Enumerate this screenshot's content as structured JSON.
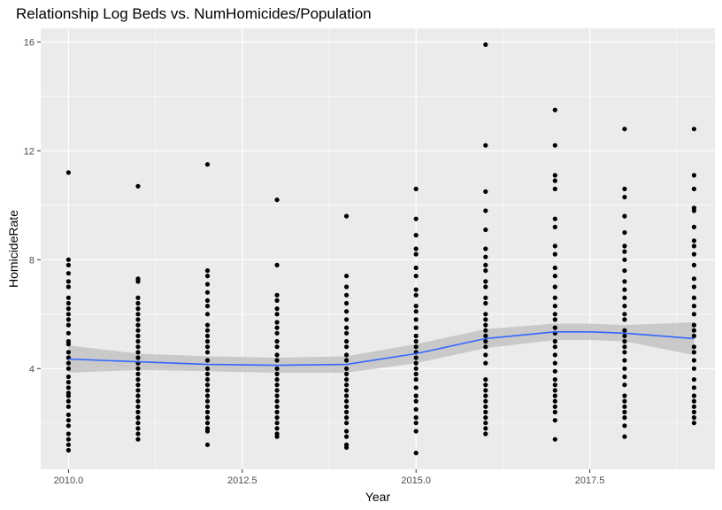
{
  "chart_data": {
    "type": "scatter",
    "title": "Relationship Log Beds vs. NumHomicides/Population",
    "xlabel": "Year",
    "ylabel": "HomicideRate",
    "xlim": [
      2009.6,
      2019.3
    ],
    "ylim": [
      0.3,
      16.5
    ],
    "x_ticks": [
      2010.0,
      2012.5,
      2015.0,
      2017.5
    ],
    "x_tick_labels": [
      "2010.0",
      "2012.5",
      "2015.0",
      "2017.5"
    ],
    "y_ticks": [
      4,
      8,
      12,
      16
    ],
    "y_tick_labels": [
      "4",
      "8",
      "12",
      "16"
    ],
    "grid": true,
    "colors": {
      "panel": "#ebebeb",
      "grid": "#ffffff",
      "points": "#000000",
      "smooth_line": "#3366ff",
      "ribbon": "#bdbdbd"
    },
    "series": [
      {
        "x": 2010,
        "values": [
          11.2,
          8.0,
          7.8,
          7.5,
          7.2,
          7.0,
          6.6,
          6.4,
          6.2,
          6.0,
          5.8,
          5.6,
          5.3,
          5.0,
          4.9,
          4.6,
          4.4,
          4.2,
          4.0,
          3.7,
          3.5,
          3.3,
          3.1,
          3.0,
          2.8,
          2.6,
          2.3,
          2.1,
          1.9,
          1.6,
          1.4,
          1.2,
          1.0
        ]
      },
      {
        "x": 2011,
        "values": [
          10.7,
          7.3,
          7.2,
          6.6,
          6.4,
          6.2,
          6.0,
          5.8,
          5.6,
          5.4,
          5.2,
          5.0,
          4.8,
          4.6,
          4.4,
          4.2,
          4.0,
          3.8,
          3.6,
          3.4,
          3.2,
          3.0,
          2.8,
          2.6,
          2.4,
          2.2,
          2.0,
          1.8,
          1.6,
          1.4
        ]
      },
      {
        "x": 2012,
        "values": [
          11.5,
          7.6,
          7.4,
          7.1,
          6.8,
          6.5,
          6.3,
          6.0,
          5.6,
          5.4,
          5.2,
          5.0,
          4.8,
          4.6,
          4.3,
          4.0,
          3.8,
          3.6,
          3.4,
          3.2,
          3.0,
          2.8,
          2.6,
          2.4,
          2.2,
          2.0,
          1.8,
          1.7,
          1.2
        ]
      },
      {
        "x": 2013,
        "values": [
          10.2,
          7.8,
          6.7,
          6.5,
          6.2,
          6.0,
          5.7,
          5.5,
          5.3,
          5.0,
          4.8,
          4.5,
          4.3,
          4.0,
          3.8,
          3.6,
          3.4,
          3.2,
          3.0,
          2.8,
          2.6,
          2.4,
          2.2,
          2.0,
          1.8,
          1.6,
          1.5
        ]
      },
      {
        "x": 2014,
        "values": [
          9.6,
          7.4,
          7.0,
          6.7,
          6.4,
          6.1,
          5.8,
          5.5,
          5.3,
          5.0,
          4.8,
          4.5,
          4.3,
          4.0,
          3.8,
          3.6,
          3.4,
          3.2,
          3.0,
          2.8,
          2.6,
          2.4,
          2.2,
          2.0,
          1.7,
          1.5,
          1.2,
          1.1
        ]
      },
      {
        "x": 2015,
        "values": [
          10.6,
          9.5,
          8.9,
          8.4,
          8.2,
          7.7,
          7.4,
          6.9,
          6.7,
          6.3,
          6.1,
          5.8,
          5.5,
          5.2,
          5.0,
          4.8,
          4.6,
          4.4,
          4.2,
          4.0,
          3.8,
          3.6,
          3.3,
          3.0,
          2.8,
          2.5,
          2.2,
          2.0,
          1.7,
          0.9
        ]
      },
      {
        "x": 2016,
        "values": [
          15.9,
          12.2,
          10.5,
          9.8,
          9.1,
          8.4,
          8.1,
          7.8,
          7.6,
          7.2,
          7.0,
          6.6,
          6.4,
          6.0,
          5.8,
          5.6,
          5.4,
          5.2,
          5.0,
          4.8,
          4.5,
          4.2,
          3.6,
          3.4,
          3.2,
          3.0,
          2.8,
          2.6,
          2.4,
          2.2,
          2.0,
          1.8,
          1.6
        ]
      },
      {
        "x": 2017,
        "values": [
          13.5,
          12.2,
          11.1,
          10.9,
          10.6,
          9.5,
          9.2,
          8.5,
          8.2,
          7.7,
          7.4,
          7.0,
          6.6,
          6.3,
          6.0,
          5.8,
          5.5,
          5.3,
          5.0,
          4.8,
          4.5,
          4.2,
          3.9,
          3.6,
          3.4,
          3.2,
          3.0,
          2.8,
          2.6,
          2.4,
          2.1,
          1.4
        ]
      },
      {
        "x": 2018,
        "values": [
          12.8,
          10.6,
          10.3,
          9.6,
          9.0,
          8.5,
          8.3,
          8.0,
          7.6,
          7.2,
          6.9,
          6.6,
          6.3,
          6.0,
          5.8,
          5.4,
          5.2,
          5.0,
          4.8,
          4.6,
          4.3,
          4.0,
          3.7,
          3.4,
          3.0,
          2.8,
          2.6,
          2.4,
          2.2,
          1.9,
          1.5
        ]
      },
      {
        "x": 2019,
        "values": [
          12.8,
          11.1,
          10.6,
          9.9,
          9.8,
          9.2,
          8.7,
          8.5,
          8.2,
          7.8,
          7.3,
          7.0,
          6.6,
          6.3,
          6.0,
          5.6,
          5.4,
          5.2,
          4.8,
          4.6,
          4.3,
          4.0,
          3.6,
          3.3,
          3.0,
          2.8,
          2.6,
          2.4,
          2.2,
          2.0
        ]
      }
    ],
    "smooth": {
      "x": [
        2010,
        2011,
        2012,
        2013,
        2014,
        2015,
        2016,
        2017,
        2017.5,
        2018,
        2019
      ],
      "y": [
        4.35,
        4.25,
        4.15,
        4.12,
        4.15,
        4.55,
        5.1,
        5.35,
        5.35,
        5.3,
        5.1
      ],
      "lower": [
        3.85,
        3.95,
        3.9,
        3.85,
        3.85,
        4.2,
        4.75,
        5.05,
        5.05,
        5.0,
        4.5
      ],
      "upper": [
        4.85,
        4.55,
        4.45,
        4.4,
        4.45,
        4.9,
        5.45,
        5.65,
        5.65,
        5.6,
        5.7
      ]
    }
  }
}
